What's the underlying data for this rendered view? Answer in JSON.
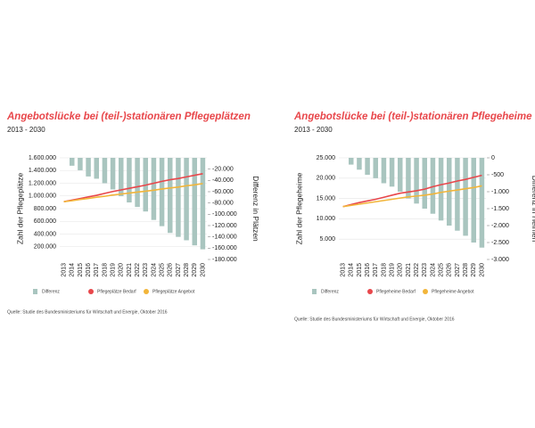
{
  "chart_data": [
    {
      "type": "combo",
      "title": "Angebotslücke bei (teil-)stationären Pflegeplätzen",
      "subtitle": "2013 - 2030",
      "y_label": "Zahl der Pflegeplätze",
      "y2_label": "Differenz in Plätzen",
      "source": "Quelle: Studie des Bundesministeriums für Wirtschaft und Energie, Oktober 2016",
      "categories": [
        "2013",
        "2014",
        "2015",
        "2016",
        "2017",
        "2018",
        "2019",
        "2020",
        "2021",
        "2022",
        "2023",
        "2024",
        "2025",
        "2026",
        "2027",
        "2028",
        "2029",
        "2030"
      ],
      "series": [
        {
          "name": "Differenz",
          "type": "bar",
          "axis": "y2",
          "color": "#a9c5bf",
          "values": [
            0,
            -14000,
            -22000,
            -33000,
            -37000,
            -45000,
            -56000,
            -68000,
            -79000,
            -87000,
            -95000,
            -110000,
            -121000,
            -133000,
            -140000,
            -146000,
            -155000,
            -162000
          ]
        },
        {
          "name": "Pflegeplätze Bedarf",
          "type": "line",
          "color": "#e8474b",
          "values": [
            910000,
            935000,
            960000,
            985000,
            1010000,
            1040000,
            1070000,
            1095000,
            1120000,
            1145000,
            1170000,
            1200000,
            1230000,
            1255000,
            1275000,
            1300000,
            1325000,
            1350000
          ]
        },
        {
          "name": "Pflegeplätze Angebot",
          "type": "line",
          "color": "#f2b53a",
          "values": [
            910000,
            925000,
            945000,
            960000,
            980000,
            995000,
            1015000,
            1030000,
            1045000,
            1060000,
            1075000,
            1090000,
            1110000,
            1125000,
            1140000,
            1160000,
            1175000,
            1195000
          ]
        }
      ],
      "ylim": [
        0,
        1600000
      ],
      "yticks": [
        {
          "value": 200000,
          "label": "200.000"
        },
        {
          "value": 400000,
          "label": "400.000"
        },
        {
          "value": 600000,
          "label": "600.000"
        },
        {
          "value": 800000,
          "label": "800.000"
        },
        {
          "value": 1000000,
          "label": "1.000.000"
        },
        {
          "value": 1200000,
          "label": "1.200.000"
        },
        {
          "value": 1400000,
          "label": "1.400.000"
        },
        {
          "value": 1600000,
          "label": "1.600.000"
        }
      ],
      "y2lim": [
        -180000,
        0
      ],
      "y2ticks": [
        {
          "value": -20000,
          "label": "-20.000"
        },
        {
          "value": -40000,
          "label": "-40.000"
        },
        {
          "value": -60000,
          "label": "-60.000"
        },
        {
          "value": -80000,
          "label": "-80.000"
        },
        {
          "value": -100000,
          "label": "-100.000"
        },
        {
          "value": -120000,
          "label": "-120.000"
        },
        {
          "value": -140000,
          "label": "-140.000"
        },
        {
          "value": -160000,
          "label": "-160.000"
        },
        {
          "value": -180000,
          "label": "-180.000"
        }
      ],
      "grid": true
    },
    {
      "type": "combo",
      "title": "Angebotslücke bei (teil-)stationären Pflegeheime",
      "subtitle": "2013 - 2030",
      "y_label": "Zahl der Pflegeheime",
      "y2_label": "Differenz in Heimen",
      "source": "Quelle: Studie des Bundesministeriums für Wirtschaft und Energie, Oktober 2016",
      "categories": [
        "2013",
        "2014",
        "2015",
        "2016",
        "2017",
        "2018",
        "2019",
        "2020",
        "2021",
        "2022",
        "2023",
        "2024",
        "2025",
        "2026",
        "2027",
        "2028",
        "2029",
        "2030"
      ],
      "series": [
        {
          "name": "Differenz",
          "type": "bar",
          "axis": "y2",
          "color": "#a9c5bf",
          "values": [
            0,
            -200,
            -350,
            -500,
            -600,
            -750,
            -850,
            -1000,
            -1200,
            -1350,
            -1500,
            -1650,
            -1850,
            -2000,
            -2150,
            -2300,
            -2500,
            -2650
          ]
        },
        {
          "name": "Pflegeheime Bedarf",
          "type": "line",
          "color": "#e8474b",
          "values": [
            13000,
            13500,
            14000,
            14400,
            14800,
            15300,
            15800,
            16300,
            16600,
            16900,
            17300,
            17900,
            18400,
            18800,
            19300,
            19700,
            20200,
            20700
          ]
        },
        {
          "name": "Pflegeheime Angebot",
          "type": "line",
          "color": "#f2b53a",
          "values": [
            13000,
            13300,
            13600,
            13900,
            14200,
            14500,
            14800,
            15100,
            15400,
            15600,
            15800,
            16100,
            16500,
            16800,
            17100,
            17400,
            17700,
            18100
          ]
        }
      ],
      "ylim": [
        0,
        25000
      ],
      "yticks": [
        {
          "value": 5000,
          "label": "5.000"
        },
        {
          "value": 10000,
          "label": "10.000"
        },
        {
          "value": 15000,
          "label": "15.000"
        },
        {
          "value": 20000,
          "label": "20.000"
        },
        {
          "value": 25000,
          "label": "25.000"
        }
      ],
      "y2lim": [
        -3000,
        0
      ],
      "y2ticks": [
        0,
        -500,
        {
          "value": -1000,
          "label": "-1.000"
        },
        {
          "value": -1500,
          "label": "-1.500"
        },
        {
          "value": -2000,
          "label": "-2.000"
        },
        {
          "value": -2500,
          "label": "-2.500"
        },
        {
          "value": -3000,
          "label": "-3.000"
        }
      ],
      "grid": true
    }
  ]
}
